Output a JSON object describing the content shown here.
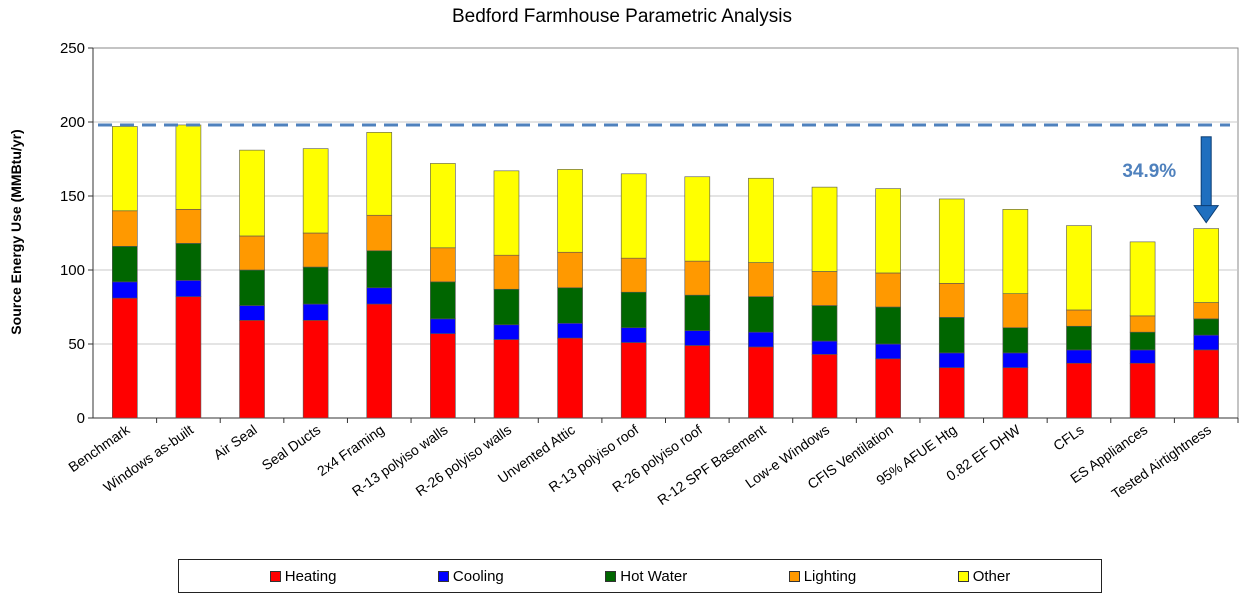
{
  "chart_data": {
    "type": "bar",
    "stacked": true,
    "title": "Bedford Farmhouse Parametric Analysis",
    "xlabel": "",
    "ylabel": "Source Energy Use (MMBtu/yr)",
    "ylim": [
      0,
      250
    ],
    "yticks": [
      0,
      50,
      100,
      150,
      200,
      250
    ],
    "grid": true,
    "legend_position": "bottom",
    "categories": [
      "Benchmark",
      "Windows as-built",
      "Air Seal",
      "Seal Ducts",
      "2x4 Framing",
      "R-13 polyiso walls",
      "R-26 polyiso walls",
      "Unvented Attic",
      "R-13 polyiso roof",
      "R-26 polyiso roof",
      "R-12 SPF Basement",
      "Low-e Windows",
      "CFIS Ventilation",
      "95% AFUE Htg",
      "0.82 EF DHW",
      "CFLs",
      "ES Appliances",
      "Tested Airtightness"
    ],
    "series": [
      {
        "name": "Heating",
        "color": "#ff0000",
        "values": [
          81,
          82,
          66,
          66,
          77,
          57,
          53,
          54,
          51,
          49,
          48,
          43,
          40,
          34,
          34,
          37,
          37,
          46
        ]
      },
      {
        "name": "Cooling",
        "color": "#0000ff",
        "values": [
          11,
          11,
          10,
          11,
          11,
          10,
          10,
          10,
          10,
          10,
          10,
          9,
          10,
          10,
          10,
          9,
          9,
          10
        ]
      },
      {
        "name": "Hot Water",
        "color": "#006600",
        "values": [
          24,
          25,
          24,
          25,
          25,
          25,
          24,
          24,
          24,
          24,
          24,
          24,
          25,
          24,
          17,
          16,
          12,
          11
        ]
      },
      {
        "name": "Lighting",
        "color": "#ff9900",
        "values": [
          24,
          23,
          23,
          23,
          24,
          23,
          23,
          24,
          23,
          23,
          23,
          23,
          23,
          23,
          23,
          11,
          11,
          11
        ]
      },
      {
        "name": "Other",
        "color": "#ffff00",
        "values": [
          57,
          57,
          58,
          57,
          56,
          57,
          57,
          56,
          57,
          57,
          57,
          57,
          57,
          57,
          57,
          57,
          50,
          50
        ]
      }
    ],
    "reference_line": {
      "value": 198
    },
    "annotation": {
      "text": "34.9%",
      "color": "#4f81bd",
      "arrow_color": "#1f6fbf",
      "arrow_at_category": "Tested Airtightness"
    }
  }
}
